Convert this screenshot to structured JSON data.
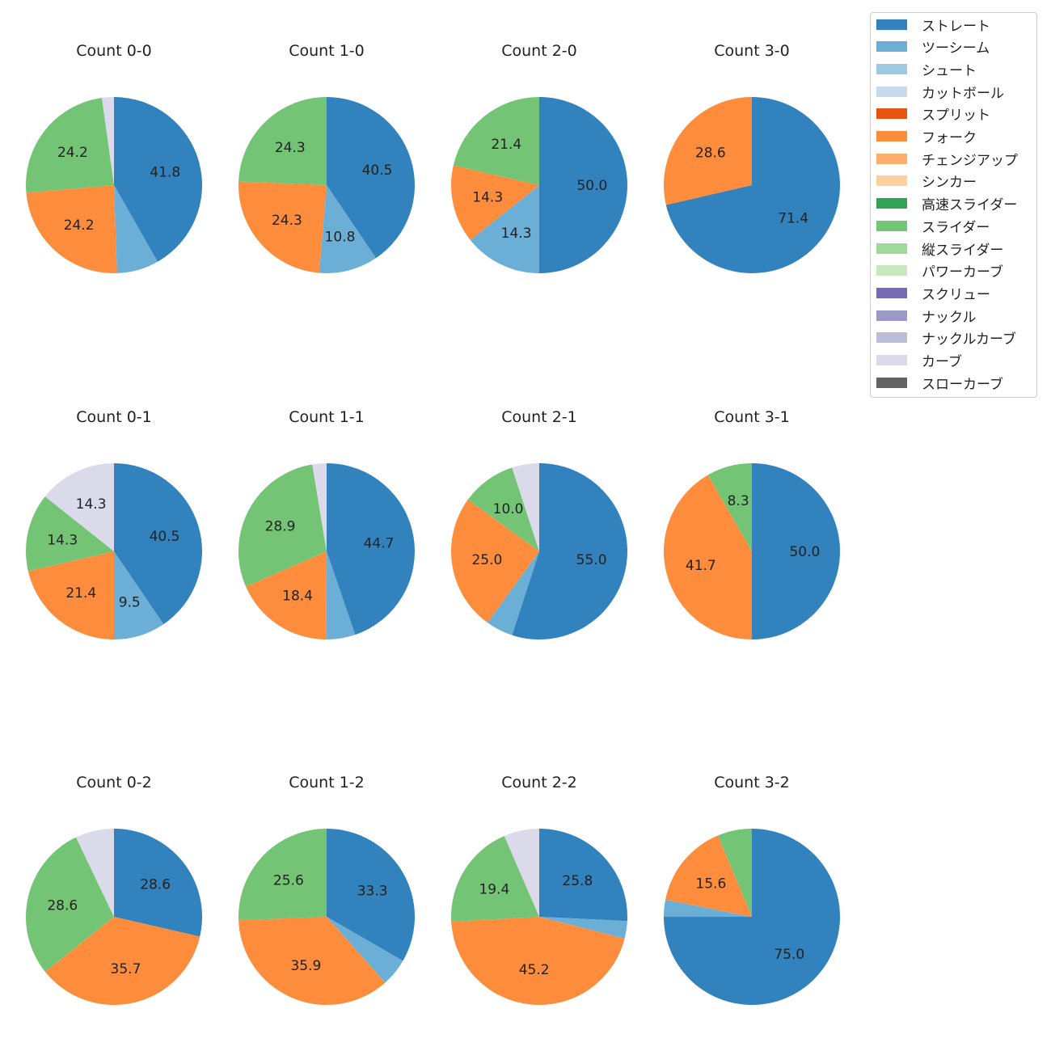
{
  "chart_data": [
    {
      "type": "pie",
      "title": "Count 0-0",
      "slices": [
        {
          "name": "ストレート",
          "value": 41.8
        },
        {
          "name": "ツーシーム",
          "value": 7.7
        },
        {
          "name": "フォーク",
          "value": 24.2
        },
        {
          "name": "スライダー",
          "value": 24.2
        },
        {
          "name": "カーブ",
          "value": 2.2
        }
      ]
    },
    {
      "type": "pie",
      "title": "Count 1-0",
      "slices": [
        {
          "name": "ストレート",
          "value": 40.5
        },
        {
          "name": "ツーシーム",
          "value": 10.8
        },
        {
          "name": "フォーク",
          "value": 24.3
        },
        {
          "name": "スライダー",
          "value": 24.3
        }
      ]
    },
    {
      "type": "pie",
      "title": "Count 2-0",
      "slices": [
        {
          "name": "ストレート",
          "value": 50.0
        },
        {
          "name": "ツーシーム",
          "value": 14.3
        },
        {
          "name": "フォーク",
          "value": 14.3
        },
        {
          "name": "スライダー",
          "value": 21.4
        }
      ]
    },
    {
      "type": "pie",
      "title": "Count 3-0",
      "slices": [
        {
          "name": "ストレート",
          "value": 71.4
        },
        {
          "name": "フォーク",
          "value": 28.6
        }
      ]
    },
    {
      "type": "pie",
      "title": "Count 0-1",
      "slices": [
        {
          "name": "ストレート",
          "value": 40.5
        },
        {
          "name": "ツーシーム",
          "value": 9.5
        },
        {
          "name": "フォーク",
          "value": 21.4
        },
        {
          "name": "スライダー",
          "value": 14.3
        },
        {
          "name": "カーブ",
          "value": 14.3
        }
      ]
    },
    {
      "type": "pie",
      "title": "Count 1-1",
      "slices": [
        {
          "name": "ストレート",
          "value": 44.7
        },
        {
          "name": "ツーシーム",
          "value": 5.3
        },
        {
          "name": "フォーク",
          "value": 18.4
        },
        {
          "name": "スライダー",
          "value": 28.9
        },
        {
          "name": "カーブ",
          "value": 2.6
        }
      ]
    },
    {
      "type": "pie",
      "title": "Count 2-1",
      "slices": [
        {
          "name": "ストレート",
          "value": 55.0
        },
        {
          "name": "ツーシーム",
          "value": 5.0
        },
        {
          "name": "フォーク",
          "value": 25.0
        },
        {
          "name": "スライダー",
          "value": 10.0
        },
        {
          "name": "カーブ",
          "value": 5.0
        }
      ]
    },
    {
      "type": "pie",
      "title": "Count 3-1",
      "slices": [
        {
          "name": "ストレート",
          "value": 50.0
        },
        {
          "name": "フォーク",
          "value": 41.7
        },
        {
          "name": "スライダー",
          "value": 8.3
        }
      ]
    },
    {
      "type": "pie",
      "title": "Count 0-2",
      "slices": [
        {
          "name": "ストレート",
          "value": 28.6
        },
        {
          "name": "フォーク",
          "value": 35.7
        },
        {
          "name": "スライダー",
          "value": 28.6
        },
        {
          "name": "カーブ",
          "value": 7.1
        }
      ]
    },
    {
      "type": "pie",
      "title": "Count 1-2",
      "slices": [
        {
          "name": "ストレート",
          "value": 33.3
        },
        {
          "name": "ツーシーム",
          "value": 5.1
        },
        {
          "name": "フォーク",
          "value": 35.9
        },
        {
          "name": "スライダー",
          "value": 25.6
        }
      ]
    },
    {
      "type": "pie",
      "title": "Count 2-2",
      "slices": [
        {
          "name": "ストレート",
          "value": 25.8
        },
        {
          "name": "ツーシーム",
          "value": 3.2
        },
        {
          "name": "フォーク",
          "value": 45.2
        },
        {
          "name": "スライダー",
          "value": 19.4
        },
        {
          "name": "カーブ",
          "value": 6.5
        }
      ]
    },
    {
      "type": "pie",
      "title": "Count 3-2",
      "slices": [
        {
          "name": "ストレート",
          "value": 75.0
        },
        {
          "name": "ツーシーム",
          "value": 3.1
        },
        {
          "name": "フォーク",
          "value": 15.6
        },
        {
          "name": "スライダー",
          "value": 6.3
        }
      ]
    }
  ],
  "legend": {
    "placement": "right",
    "items": [
      {
        "label": "ストレート",
        "color": "#3182bd"
      },
      {
        "label": "ツーシーム",
        "color": "#6baed6"
      },
      {
        "label": "シュート",
        "color": "#9ecae1"
      },
      {
        "label": "カットボール",
        "color": "#c6dbef"
      },
      {
        "label": "スプリット",
        "color": "#e6550d"
      },
      {
        "label": "フォーク",
        "color": "#fd8d3c"
      },
      {
        "label": "チェンジアップ",
        "color": "#fdae6b"
      },
      {
        "label": "シンカー",
        "color": "#fdd0a2"
      },
      {
        "label": "高速スライダー",
        "color": "#31a354"
      },
      {
        "label": "スライダー",
        "color": "#74c476"
      },
      {
        "label": "縦スライダー",
        "color": "#a1d99b"
      },
      {
        "label": "パワーカーブ",
        "color": "#c7e9c0"
      },
      {
        "label": "スクリュー",
        "color": "#756bb1"
      },
      {
        "label": "ナックル",
        "color": "#9e9ac8"
      },
      {
        "label": "ナックルカーブ",
        "color": "#bcbddc"
      },
      {
        "label": "カーブ",
        "color": "#dadaeb"
      },
      {
        "label": "スローカーブ",
        "color": "#636363"
      }
    ]
  }
}
